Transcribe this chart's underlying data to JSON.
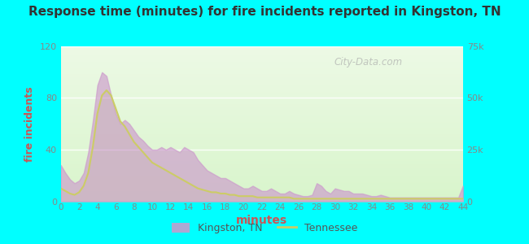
{
  "title": "Response time (minutes) for fire incidents reported in Kingston, TN",
  "xlabel": "minutes",
  "ylabel_left": "fire incidents",
  "bg_outer": "#00FFFF",
  "bg_inner_top": "#e8f5e0",
  "bg_inner_bottom": "#d0eecc",
  "x_ticks": [
    0,
    2,
    4,
    6,
    8,
    10,
    12,
    14,
    16,
    18,
    20,
    22,
    24,
    26,
    28,
    30,
    32,
    34,
    36,
    38,
    40,
    42,
    44
  ],
  "ylim_left": [
    0,
    120
  ],
  "ylim_right": [
    0,
    75000
  ],
  "yticks_left": [
    0,
    40,
    80,
    120
  ],
  "yticks_right": [
    0,
    25000,
    50000,
    75000
  ],
  "ytick_labels_right": [
    "0",
    "25k",
    "50k",
    "75k"
  ],
  "kingston_x": [
    0,
    0.5,
    1,
    1.5,
    2,
    2.5,
    3,
    3.5,
    4,
    4.5,
    5,
    5.5,
    6,
    6.5,
    7,
    7.5,
    8,
    8.5,
    9,
    9.5,
    10,
    10.5,
    11,
    11.5,
    12,
    12.5,
    13,
    13.5,
    14,
    14.5,
    15,
    15.5,
    16,
    16.5,
    17,
    17.5,
    18,
    18.5,
    19,
    19.5,
    20,
    20.5,
    21,
    21.5,
    22,
    22.5,
    23,
    23.5,
    24,
    24.5,
    25,
    25.5,
    26,
    26.5,
    27,
    27.5,
    28,
    28.5,
    29,
    29.5,
    30,
    30.5,
    31,
    31.5,
    32,
    32.5,
    33,
    33.5,
    34,
    34.5,
    35,
    35.5,
    36,
    36.5,
    37,
    37.5,
    38,
    38.5,
    39,
    39.5,
    40,
    40.5,
    41,
    41.5,
    42,
    42.5,
    43,
    43.5,
    44
  ],
  "kingston_y": [
    28,
    22,
    17,
    14,
    16,
    22,
    38,
    62,
    90,
    100,
    97,
    82,
    68,
    60,
    63,
    60,
    55,
    50,
    47,
    43,
    40,
    40,
    42,
    40,
    42,
    40,
    38,
    42,
    40,
    38,
    32,
    28,
    24,
    22,
    20,
    18,
    18,
    16,
    14,
    12,
    10,
    10,
    12,
    10,
    8,
    8,
    10,
    8,
    6,
    6,
    8,
    6,
    5,
    4,
    4,
    5,
    14,
    12,
    8,
    6,
    10,
    9,
    8,
    8,
    6,
    6,
    6,
    5,
    4,
    4,
    5,
    4,
    3,
    3,
    3,
    3,
    3,
    3,
    3,
    3,
    3,
    3,
    3,
    3,
    3,
    3,
    3,
    3,
    12
  ],
  "tennessee_x": [
    0,
    0.5,
    1,
    1.5,
    2,
    2.5,
    3,
    3.5,
    4,
    4.5,
    5,
    5.5,
    6,
    6.5,
    7,
    7.5,
    8,
    8.5,
    9,
    9.5,
    10,
    10.5,
    11,
    11.5,
    12,
    12.5,
    13,
    13.5,
    14,
    14.5,
    15,
    15.5,
    16,
    16.5,
    17,
    17.5,
    18,
    18.5,
    19,
    19.5,
    20,
    20.5,
    21,
    21.5,
    22,
    22.5,
    23,
    23.5,
    24,
    24.5,
    25,
    25.5,
    26,
    26.5,
    27,
    27.5,
    28,
    28.5,
    29,
    29.5,
    30,
    30.5,
    31,
    31.5,
    32,
    32.5,
    33,
    33.5,
    34,
    34.5,
    35,
    35.5,
    36,
    36.5,
    37,
    37.5,
    38,
    38.5,
    39,
    39.5,
    40,
    40.5,
    41,
    41.5,
    42,
    42.5,
    43,
    43.5,
    44
  ],
  "tennessee_y": [
    10,
    8,
    6,
    5,
    7,
    12,
    22,
    42,
    68,
    82,
    86,
    82,
    72,
    62,
    58,
    52,
    46,
    42,
    38,
    34,
    30,
    28,
    26,
    24,
    22,
    20,
    18,
    16,
    14,
    12,
    10,
    9,
    8,
    7,
    7,
    6,
    6,
    5,
    5,
    4,
    4,
    4,
    4,
    3,
    3,
    3,
    3,
    3,
    3,
    3,
    3,
    2,
    2,
    2,
    2,
    2,
    2,
    2,
    2,
    2,
    2,
    2,
    2,
    2,
    2,
    2,
    2,
    2,
    2,
    2,
    2,
    2,
    2,
    2,
    2,
    2,
    2,
    2,
    2,
    2,
    2,
    2,
    2,
    2,
    2,
    2,
    2,
    2,
    2
  ],
  "kingston_fill_color": "#cc99cc",
  "kingston_fill_alpha": 0.65,
  "tennessee_line_color": "#cccc66",
  "tennessee_fill_color": "#cceeaa",
  "tennessee_fill_alpha": 0.55,
  "watermark": "City-Data.com",
  "legend_kingston_label": "Kingston, TN",
  "legend_tennessee_label": "Tennessee",
  "title_color": "#333333",
  "axis_label_color": "#cc5555",
  "tick_label_color": "#888888",
  "grid_color": "#ffffff",
  "grid_alpha": 0.9
}
